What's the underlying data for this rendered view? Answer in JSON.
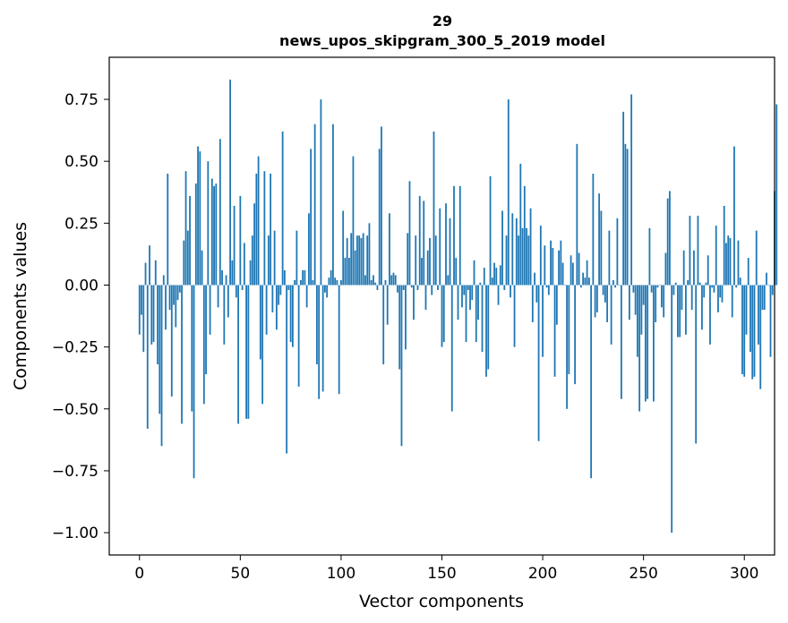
{
  "chart_data": {
    "type": "bar",
    "title_line1": "29",
    "title_line2": "news_upos_skipgram_300_5_2019 model",
    "xlabel": "Vector components",
    "ylabel": "Components values",
    "xlim": [
      -15,
      315
    ],
    "ylim": [
      -1.09,
      0.92
    ],
    "xticks": [
      0,
      50,
      100,
      150,
      200,
      250,
      300
    ],
    "xtick_labels": [
      "0",
      "50",
      "100",
      "150",
      "200",
      "250",
      "300"
    ],
    "yticks": [
      -1.0,
      -0.75,
      -0.5,
      -0.25,
      0.0,
      0.25,
      0.5,
      0.75
    ],
    "ytick_labels": [
      "−1.00",
      "−0.75",
      "−0.50",
      "−0.25",
      "0.00",
      "0.25",
      "0.50",
      "0.75"
    ],
    "bar_color": "#1f77b4",
    "grid": false,
    "values": [
      -0.2,
      -0.12,
      -0.27,
      0.09,
      -0.58,
      0.16,
      -0.24,
      -0.23,
      0.1,
      -0.32,
      -0.52,
      -0.65,
      0.04,
      -0.18,
      0.45,
      -0.1,
      -0.45,
      -0.08,
      -0.17,
      -0.06,
      -0.03,
      -0.56,
      0.18,
      0.46,
      0.22,
      0.36,
      -0.51,
      -0.78,
      0.41,
      0.56,
      0.54,
      0.14,
      -0.48,
      -0.36,
      0.5,
      -0.2,
      0.43,
      0.4,
      0.41,
      -0.09,
      0.59,
      0.06,
      -0.24,
      0.04,
      -0.13,
      0.83,
      0.1,
      0.32,
      -0.05,
      -0.56,
      0.36,
      -0.02,
      0.17,
      -0.54,
      -0.54,
      0.1,
      0.2,
      0.33,
      0.45,
      0.52,
      -0.3,
      -0.48,
      0.46,
      -0.2,
      0.2,
      0.45,
      -0.11,
      0.22,
      -0.18,
      -0.08,
      -0.04,
      0.62,
      0.06,
      -0.68,
      -0.02,
      -0.23,
      -0.25,
      0.02,
      0.22,
      -0.41,
      0.02,
      0.06,
      0.06,
      -0.09,
      0.29,
      0.55,
      0.02,
      0.65,
      -0.32,
      -0.46,
      0.75,
      -0.43,
      -0.03,
      -0.05,
      0.03,
      0.06,
      0.65,
      0.03,
      0.02,
      -0.44,
      0.02,
      0.3,
      0.11,
      0.19,
      0.11,
      0.21,
      0.52,
      0.14,
      0.2,
      0.2,
      0.19,
      0.21,
      0.04,
      0.2,
      0.25,
      0.02,
      0.04,
      0.01,
      -0.02,
      0.55,
      0.64,
      -0.32,
      0.02,
      -0.16,
      0.29,
      0.04,
      0.05,
      0.04,
      -0.03,
      -0.34,
      -0.65,
      -0.02,
      -0.26,
      0.21,
      0.42,
      -0.01,
      -0.14,
      0.2,
      -0.02,
      0.36,
      0.11,
      0.34,
      -0.1,
      0.14,
      0.19,
      -0.04,
      0.62,
      0.2,
      -0.02,
      0.31,
      -0.25,
      -0.23,
      0.33,
      0.04,
      0.27,
      -0.51,
      0.4,
      0.11,
      -0.14,
      0.4,
      -0.09,
      -0.04,
      -0.23,
      -0.02,
      -0.1,
      -0.06,
      0.1,
      -0.23,
      -0.14,
      0.01,
      -0.27,
      0.07,
      -0.37,
      -0.34,
      0.44,
      0.03,
      0.09,
      0.07,
      -0.08,
      0.08,
      0.3,
      -0.02,
      0.2,
      0.75,
      -0.05,
      0.29,
      -0.25,
      0.27,
      0.2,
      0.49,
      0.23,
      0.4,
      0.23,
      0.2,
      0.31,
      -0.15,
      0.05,
      -0.07,
      -0.63,
      0.24,
      -0.29,
      0.16,
      -0.01,
      -0.04,
      0.18,
      0.15,
      -0.37,
      -0.16,
      0.14,
      0.18,
      0.09,
      0.0,
      -0.5,
      -0.36,
      0.12,
      0.09,
      -0.4,
      0.57,
      0.13,
      -0.01,
      0.05,
      0.03,
      0.1,
      0.03,
      -0.78,
      0.45,
      -0.13,
      -0.11,
      0.37,
      0.3,
      -0.04,
      -0.07,
      -0.15,
      0.22,
      -0.24,
      0.02,
      -0.01,
      0.27,
      0.0,
      -0.46,
      0.7,
      0.57,
      0.55,
      -0.14,
      0.77,
      -0.03,
      -0.12,
      -0.29,
      -0.51,
      -0.2,
      -0.08,
      -0.47,
      -0.46,
      0.23,
      -0.03,
      -0.47,
      -0.15,
      -0.01,
      0.0,
      -0.09,
      -0.13,
      0.13,
      0.35,
      0.38,
      -1.0,
      -0.04,
      0.01,
      -0.21,
      -0.21,
      -0.1,
      0.14,
      -0.2,
      0.02,
      0.28,
      -0.1,
      0.14,
      -0.64,
      0.28,
      0.01,
      -0.18,
      -0.05,
      0.01,
      0.12,
      -0.24,
      -0.01,
      -0.03,
      0.24,
      -0.11,
      -0.05,
      -0.07,
      0.32,
      0.17,
      0.2,
      0.19,
      -0.13,
      0.56,
      -0.01,
      0.18,
      0.03,
      -0.36,
      -0.37,
      -0.2,
      0.11,
      -0.27,
      -0.38,
      -0.37,
      0.22,
      -0.24,
      -0.42,
      -0.1,
      -0.1,
      0.05,
      0.0,
      -0.29,
      -0.04,
      0.38,
      0.73
    ]
  }
}
